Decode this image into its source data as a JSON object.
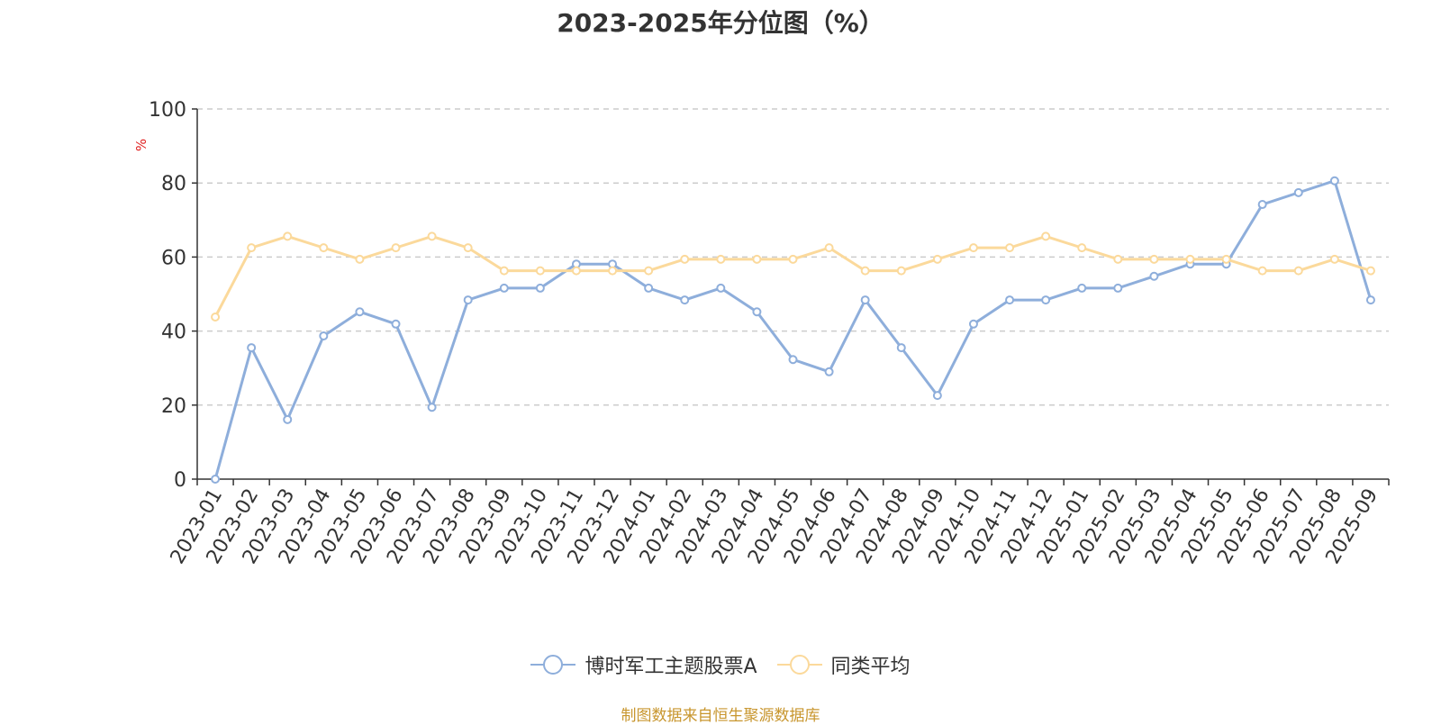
{
  "chart_data": {
    "type": "line",
    "title": "2023-2025年分位图（%）",
    "ylabel": "%",
    "xlabel": "",
    "ylim": [
      0,
      100
    ],
    "yticks": [
      0,
      20,
      40,
      60,
      80,
      100
    ],
    "grid": "horizontal-dashed",
    "legend_position": "bottom",
    "categories": [
      "2023-01",
      "2023-02",
      "2023-03",
      "2023-04",
      "2023-05",
      "2023-06",
      "2023-07",
      "2023-08",
      "2023-09",
      "2023-10",
      "2023-11",
      "2023-12",
      "2024-01",
      "2024-02",
      "2024-03",
      "2024-04",
      "2024-05",
      "2024-06",
      "2024-07",
      "2024-08",
      "2024-09",
      "2024-10",
      "2024-11",
      "2024-12",
      "2025-01",
      "2025-02",
      "2025-03",
      "2025-04",
      "2025-05",
      "2025-06",
      "2025-07",
      "2025-08",
      "2025-09"
    ],
    "series": [
      {
        "name": "博时军工主题股票A",
        "color": "#8eaedb",
        "values": [
          0,
          35.5,
          16.1,
          38.7,
          45.2,
          41.9,
          19.4,
          48.4,
          51.6,
          51.6,
          58.1,
          58.1,
          51.6,
          48.4,
          51.6,
          45.2,
          32.3,
          29.0,
          48.4,
          35.5,
          22.6,
          41.9,
          48.4,
          48.4,
          51.6,
          51.6,
          54.8,
          58.1,
          58.1,
          74.2,
          77.4,
          80.6,
          48.4
        ]
      },
      {
        "name": "同类平均",
        "color": "#fbd99b",
        "values": [
          43.8,
          62.5,
          65.6,
          62.5,
          59.4,
          62.5,
          65.6,
          62.5,
          56.3,
          56.3,
          56.3,
          56.3,
          56.3,
          59.4,
          59.4,
          59.4,
          59.4,
          62.5,
          56.3,
          56.3,
          59.4,
          62.5,
          62.5,
          65.6,
          62.5,
          59.4,
          59.4,
          59.4,
          59.4,
          56.3,
          56.3,
          59.4,
          56.3
        ]
      }
    ]
  },
  "source_text": "制图数据来自恒生聚源数据库",
  "colors": {
    "ylabel": "#e02020",
    "axis": "#333333",
    "grid": "#cccccc",
    "source": "#c8962e"
  }
}
